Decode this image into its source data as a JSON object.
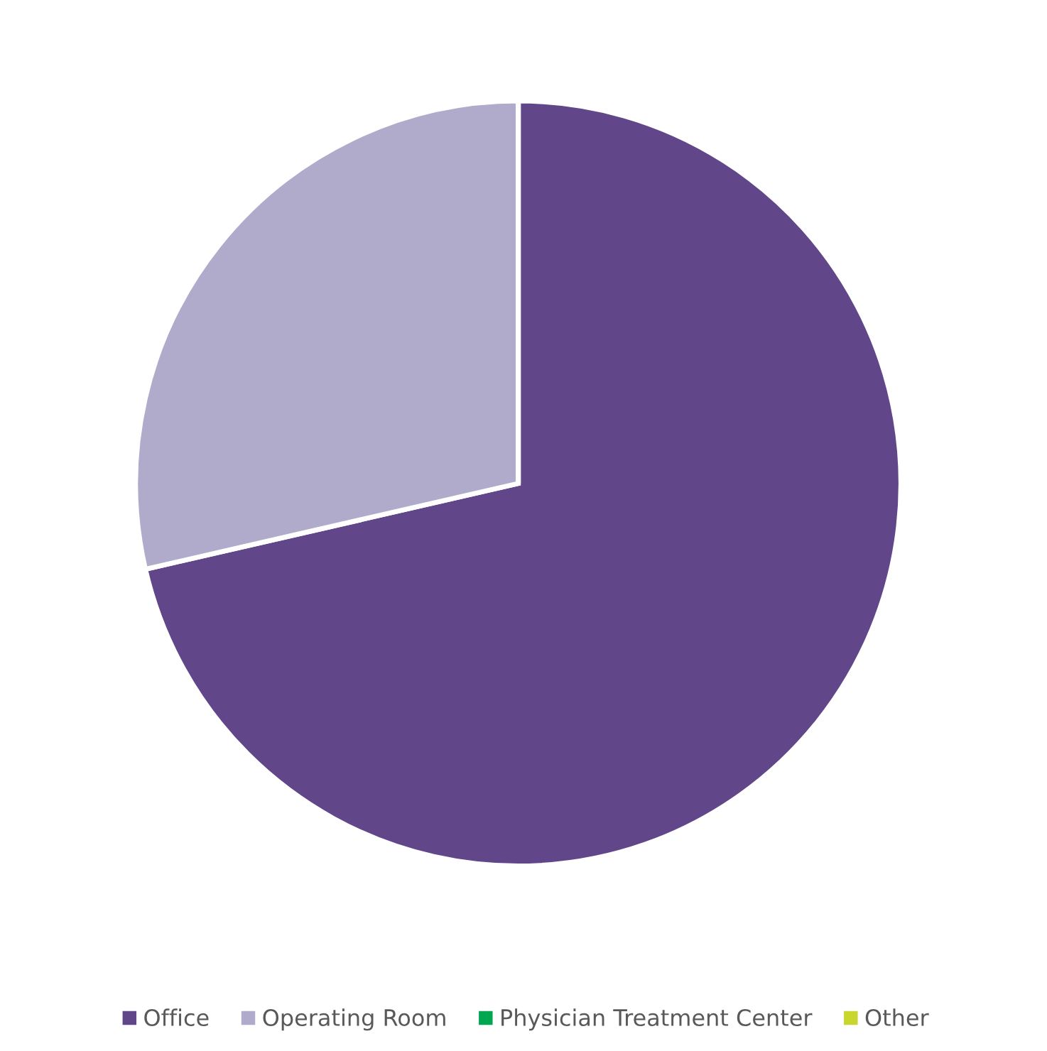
{
  "chart_data": {
    "type": "pie",
    "categories": [
      "Office",
      "Operating Room",
      "Physician Treatment Center",
      "Other"
    ],
    "values": [
      71.4,
      28.6,
      0,
      0
    ],
    "colors": [
      "#61468a",
      "#b0aacb",
      "#00a650",
      "#c8d62e"
    ],
    "legend": "bottom"
  }
}
